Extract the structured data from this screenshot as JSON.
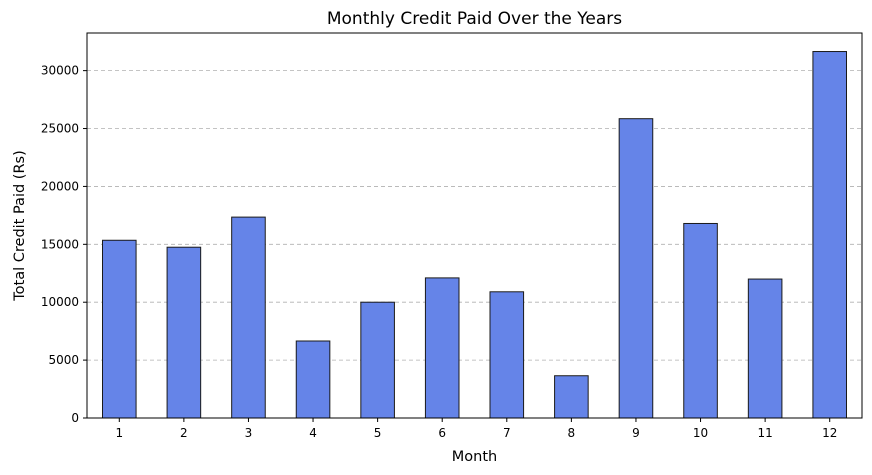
{
  "chart_data": {
    "type": "bar",
    "title": "Monthly Credit Paid Over the Years",
    "xlabel": "Month",
    "ylabel": "Total Credit Paid (Rs)",
    "categories": [
      "1",
      "2",
      "3",
      "4",
      "5",
      "6",
      "7",
      "8",
      "9",
      "10",
      "11",
      "12"
    ],
    "values": [
      15350,
      14750,
      17350,
      6650,
      10000,
      12100,
      10900,
      3650,
      25850,
      16800,
      12000,
      31650
    ],
    "ylim": [
      0,
      33250
    ],
    "yticks": [
      0,
      5000,
      10000,
      15000,
      20000,
      25000,
      30000
    ],
    "grid": "y-dashed",
    "bar_color": "#6584e8"
  }
}
